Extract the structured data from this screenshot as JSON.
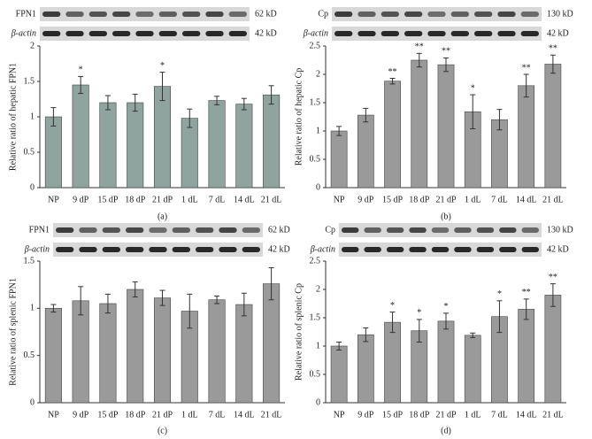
{
  "chart_data": [
    {
      "type": "bar",
      "panel_label": "(a)",
      "y_label": "Relative ratio of hepatic FPN1",
      "blot": [
        {
          "label": "FPN1",
          "size": "62 kD"
        },
        {
          "label": "β-actin",
          "size": "42 kD"
        }
      ],
      "categories": [
        "NP",
        "9 dP",
        "15 dP",
        "18 dP",
        "21 dP",
        "1 dL",
        "7 dL",
        "14 dL",
        "21 dL"
      ],
      "values": [
        1.0,
        1.45,
        1.2,
        1.2,
        1.43,
        0.98,
        1.23,
        1.18,
        1.31
      ],
      "errors": [
        0.13,
        0.12,
        0.1,
        0.12,
        0.2,
        0.13,
        0.06,
        0.08,
        0.13
      ],
      "significance": [
        null,
        "*",
        null,
        null,
        "*",
        null,
        null,
        null,
        null
      ],
      "color": "#8fa39f",
      "ylim": [
        0,
        2
      ],
      "yticks": [
        0,
        0.5,
        1,
        1.5,
        2
      ]
    },
    {
      "type": "bar",
      "panel_label": "(b)",
      "y_label": "Relative ratio of hepatic Cp",
      "blot": [
        {
          "label": "Cp",
          "size": "130 kD"
        },
        {
          "label": "β-actin",
          "size": "42 kD"
        }
      ],
      "categories": [
        "NP",
        "9 dP",
        "15 dP",
        "18 dP",
        "21 dP",
        "1 dL",
        "7 dL",
        "14 dL",
        "21 dL"
      ],
      "values": [
        1.0,
        1.28,
        1.88,
        2.25,
        2.17,
        1.34,
        1.2,
        1.8,
        2.18
      ],
      "errors": [
        0.08,
        0.12,
        0.05,
        0.12,
        0.12,
        0.3,
        0.18,
        0.2,
        0.16
      ],
      "significance": [
        null,
        null,
        "**",
        "**",
        "**",
        "*",
        null,
        "**",
        "**"
      ],
      "color": "#9a9a9a",
      "ylim": [
        0,
        2.5
      ],
      "yticks": [
        0,
        0.5,
        1,
        1.5,
        2,
        2.5
      ]
    },
    {
      "type": "bar",
      "panel_label": "(c)",
      "y_label": "Relative ratio of splenic FPN1",
      "blot": [
        {
          "label": "FPN1",
          "size": "62 kD"
        },
        {
          "label": "β-actin",
          "size": "42 kD"
        }
      ],
      "categories": [
        "NP",
        "9 dP",
        "15 dP",
        "18 dP",
        "21 dP",
        "1 dL",
        "7 dL",
        "14 dL",
        "21 dL"
      ],
      "values": [
        1.0,
        1.08,
        1.05,
        1.2,
        1.11,
        0.97,
        1.09,
        1.04,
        1.26
      ],
      "errors": [
        0.04,
        0.15,
        0.1,
        0.08,
        0.08,
        0.18,
        0.04,
        0.12,
        0.17
      ],
      "significance": [
        null,
        null,
        null,
        null,
        null,
        null,
        null,
        null,
        null
      ],
      "color": "#9a9a9a",
      "ylim": [
        0,
        1.5
      ],
      "yticks": [
        0,
        0.5,
        1,
        1.5
      ]
    },
    {
      "type": "bar",
      "panel_label": "(d)",
      "y_label": "Relative ratio of splenic Cp",
      "blot": [
        {
          "label": "Cp",
          "size": "130 kD"
        },
        {
          "label": "β-actin",
          "size": "42 kD"
        }
      ],
      "categories": [
        "NP",
        "9 dP",
        "15 dP",
        "18 dP",
        "21 dP",
        "1 dL",
        "7 dL",
        "14 dL",
        "21 dL"
      ],
      "values": [
        1.0,
        1.2,
        1.42,
        1.27,
        1.44,
        1.19,
        1.52,
        1.65,
        1.9
      ],
      "errors": [
        0.07,
        0.12,
        0.18,
        0.2,
        0.14,
        0.04,
        0.28,
        0.18,
        0.2
      ],
      "significance": [
        null,
        null,
        "*",
        "*",
        "*",
        null,
        "*",
        "**",
        "**"
      ],
      "color": "#9a9a9a",
      "ylim": [
        0,
        2.5
      ],
      "yticks": [
        0,
        0.5,
        1,
        1.5,
        2,
        2.5
      ]
    }
  ]
}
